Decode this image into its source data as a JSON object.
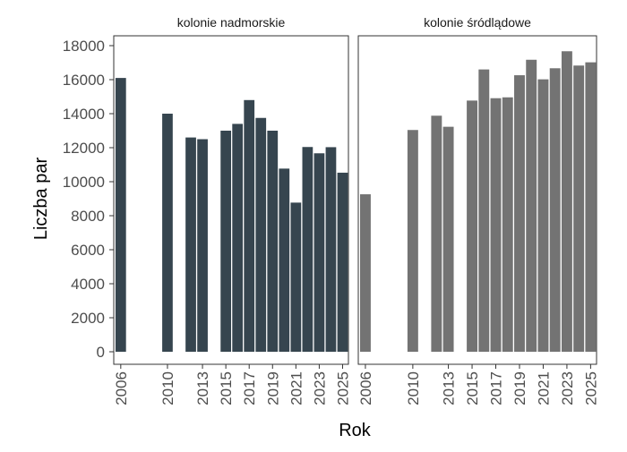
{
  "chart_data": {
    "type": "bar",
    "xlabel": "Rok",
    "ylabel": "Liczba par",
    "ylim": [
      0,
      18000
    ],
    "yticks": [
      0,
      2000,
      4000,
      6000,
      8000,
      10000,
      12000,
      14000,
      16000,
      18000
    ],
    "xticks": [
      "2006",
      "2010",
      "2013",
      "2015",
      "2017",
      "2019",
      "2021",
      "2023",
      "2025"
    ],
    "xlim": [
      2005.4,
      2025.5
    ],
    "grid": false,
    "legend": "none",
    "panels": [
      {
        "title": "kolonie nadmorskie",
        "color": "#36454f",
        "x": [
          2006,
          2010,
          2012,
          2013,
          2015,
          2016,
          2017,
          2018,
          2019,
          2020,
          2021,
          2022,
          2023,
          2024,
          2025
        ],
        "values": [
          16100,
          14000,
          12600,
          12500,
          13000,
          13400,
          14800,
          13750,
          13000,
          10770,
          8770,
          12040,
          11670,
          12030,
          10530
        ]
      },
      {
        "title": "kolonie śródlądowe",
        "color": "#737373",
        "x": [
          2006,
          2010,
          2012,
          2013,
          2015,
          2016,
          2017,
          2018,
          2019,
          2020,
          2021,
          2022,
          2023,
          2024,
          2025
        ],
        "values": [
          9260,
          13040,
          13880,
          13230,
          14770,
          16600,
          14910,
          14960,
          16260,
          17170,
          16020,
          16670,
          17670,
          16830,
          17020
        ]
      }
    ]
  }
}
